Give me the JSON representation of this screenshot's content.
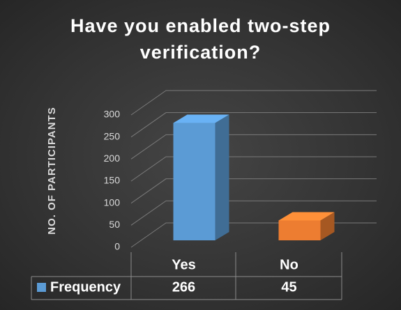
{
  "chart_data": {
    "type": "bar3d",
    "title": "Have you enabled two-step verification?",
    "y_label": "NO. OF PARTICIPANTS",
    "categories": [
      "Yes",
      "No"
    ],
    "series": [
      {
        "name": "Frequency",
        "color": "#5b9bd5",
        "colors": [
          "#5b9bd5",
          "#ed7d31"
        ],
        "values": [
          266,
          45
        ]
      }
    ],
    "ylim": [
      0,
      300
    ],
    "yticks": [
      0,
      50,
      100,
      150,
      200,
      250,
      300
    ],
    "grid": true
  }
}
